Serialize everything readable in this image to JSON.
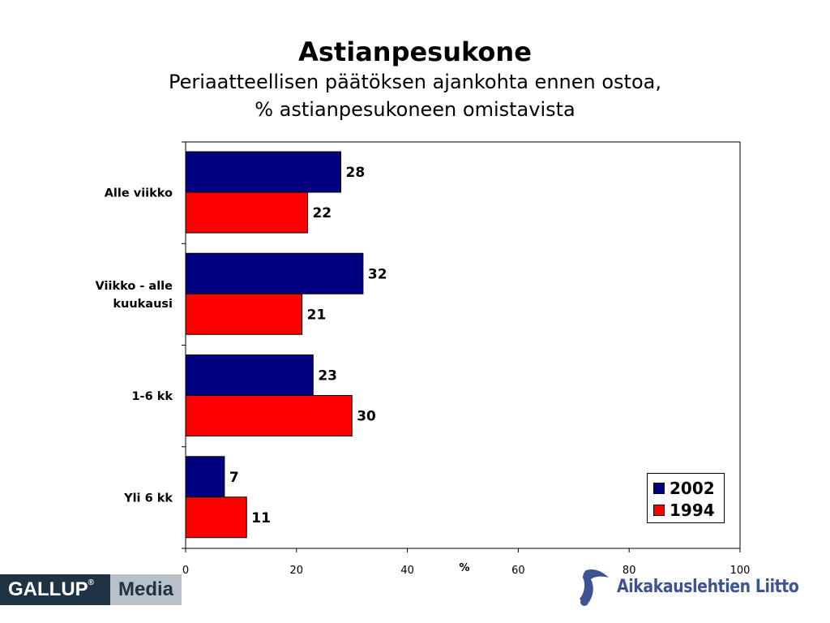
{
  "title": "Astianpesukone",
  "subtitle_line1": "Periaatteellisen päätöksen ajankohta ennen ostoa,",
  "subtitle_line2": "% astianpesukoneen omistavista",
  "chart_data": {
    "type": "bar",
    "orientation": "horizontal",
    "categories": [
      "Alle viikko",
      "Viikko - alle kuukausi",
      "1-6 kk",
      "Yli 6 kk"
    ],
    "category_lines": [
      [
        "Alle viikko"
      ],
      [
        "Viikko - alle",
        "kuukausi"
      ],
      [
        "1-6 kk"
      ],
      [
        "Yli 6 kk"
      ]
    ],
    "series": [
      {
        "name": "2002",
        "values": [
          28,
          32,
          23,
          7
        ],
        "color": "#000080"
      },
      {
        "name": "1994",
        "values": [
          22,
          21,
          30,
          11
        ],
        "color": "#ff0000"
      }
    ],
    "xlim": [
      0,
      100
    ],
    "xticks": [
      0,
      20,
      40,
      60,
      80,
      100
    ],
    "xlabel": "%",
    "legend_position": "bottom-right",
    "grid": false,
    "data_labels": true
  },
  "logos": {
    "gallup": "GALLUP",
    "gallup_reg": "®",
    "gallup_media": "Media",
    "aikakauslehtien": "Aikakauslehtien Liitto"
  }
}
